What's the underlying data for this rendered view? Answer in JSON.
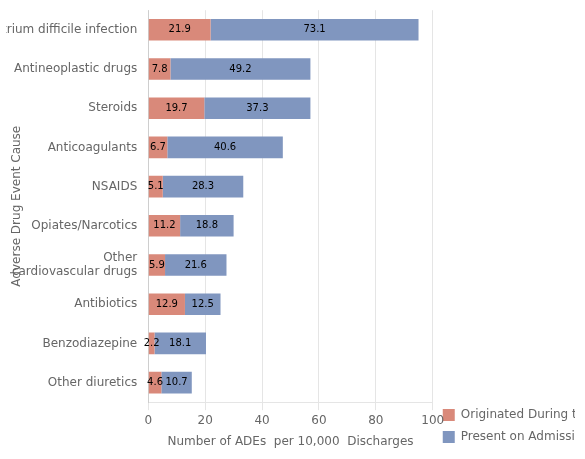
{
  "chart_data": {
    "type": "bar",
    "orientation": "horizontal",
    "stacked": true,
    "categories": [
      "Clostrium difficile infection",
      "Antineoplastic drugs",
      "Steroids",
      "Anticoagulants",
      "NSAIDS",
      "Opiates/Narcotics",
      "Other\ncardiovascular drugs",
      "Antibiotics",
      "Benzodiazepine",
      "Other diuretics"
    ],
    "series": [
      {
        "name": "Originated During the Stay",
        "color": "#d9897a",
        "values": [
          21.9,
          7.8,
          19.7,
          6.7,
          5.1,
          11.2,
          5.9,
          12.9,
          2.2,
          4.6
        ]
      },
      {
        "name": "Present on Admission",
        "color": "#8096bf",
        "values": [
          73.1,
          49.2,
          37.3,
          40.6,
          28.3,
          18.8,
          21.6,
          12.5,
          18.1,
          10.7
        ]
      }
    ],
    "xlabel": "Number of ADEs  per 10,000  Discharges",
    "ylabel": "Adverse Drug Event Cause",
    "xlim": [
      0,
      100
    ],
    "xticks": [
      0,
      20,
      40,
      60,
      80,
      100
    ],
    "grid": true,
    "legend": "lower right",
    "data_labels": true
  }
}
